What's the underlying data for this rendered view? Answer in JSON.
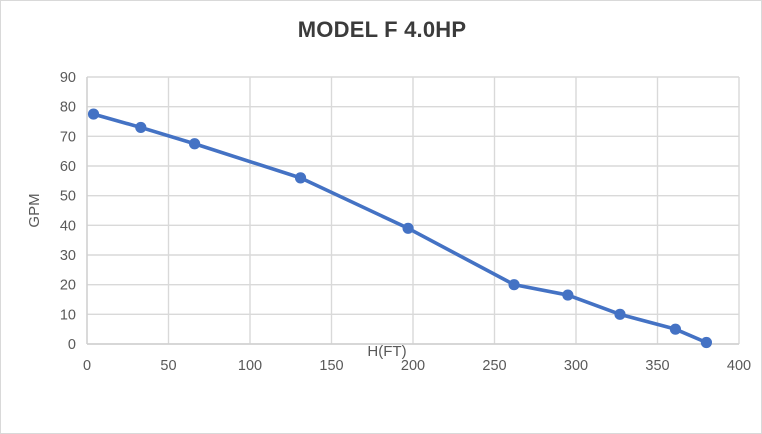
{
  "chart": {
    "title": "MODEL F 4.0HP",
    "colors": {
      "series_line": "#4472c4",
      "marker_fill": "#4472c4",
      "gridline": "#d9d9d9",
      "axis_line": "#d0d0d0",
      "tick_text": "#595959",
      "axis_title_text": "#595959",
      "title_text": "#3b3b3b",
      "frame_border": "#d9d9d9",
      "background": "#ffffff"
    }
  },
  "chart_data": {
    "type": "line",
    "title": "MODEL F 4.0HP",
    "xlabel": "H(FT)",
    "ylabel": "GPM",
    "x": [
      4,
      33,
      66,
      131,
      197,
      262,
      295,
      327,
      361,
      380
    ],
    "y": [
      77.5,
      73,
      67.5,
      56,
      39,
      20,
      16.5,
      10,
      5,
      0.5
    ],
    "xlim": [
      0,
      400
    ],
    "ylim": [
      0,
      90
    ],
    "x_ticks": [
      0,
      50,
      100,
      150,
      200,
      250,
      300,
      350,
      400
    ],
    "y_ticks": [
      0,
      10,
      20,
      30,
      40,
      50,
      60,
      70,
      80,
      90
    ],
    "grid": true,
    "legend": "none",
    "marker": "circle",
    "series": [
      {
        "name": "MODEL F 4.0HP",
        "points": [
          {
            "h_ft": 4,
            "gpm": 77.5
          },
          {
            "h_ft": 33,
            "gpm": 73
          },
          {
            "h_ft": 66,
            "gpm": 67.5
          },
          {
            "h_ft": 131,
            "gpm": 56
          },
          {
            "h_ft": 197,
            "gpm": 39
          },
          {
            "h_ft": 262,
            "gpm": 20
          },
          {
            "h_ft": 295,
            "gpm": 16.5
          },
          {
            "h_ft": 327,
            "gpm": 10
          },
          {
            "h_ft": 361,
            "gpm": 5
          },
          {
            "h_ft": 380,
            "gpm": 0.5
          }
        ]
      }
    ]
  }
}
